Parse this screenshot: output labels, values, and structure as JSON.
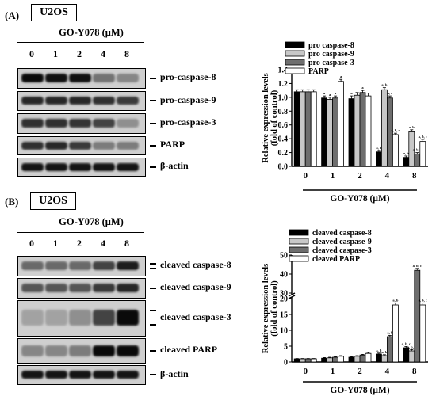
{
  "panelA": {
    "label": "(A)",
    "cell_line": "U2OS",
    "condition": "GO-Y078 (μM)",
    "lanes": [
      "0",
      "1",
      "2",
      "4",
      "8"
    ],
    "blots": [
      {
        "name": "pro-caspase-8",
        "intensity": [
          1.0,
          0.97,
          0.97,
          0.45,
          0.35
        ]
      },
      {
        "name": "pro-caspase-9",
        "intensity": [
          0.85,
          0.85,
          0.85,
          0.8,
          0.75
        ]
      },
      {
        "name": "pro-caspase-3",
        "intensity": [
          0.8,
          0.8,
          0.78,
          0.7,
          0.3
        ]
      },
      {
        "name": "PARP",
        "intensity": [
          0.8,
          0.85,
          0.75,
          0.4,
          0.4
        ]
      },
      {
        "name": "β-actin",
        "intensity": [
          0.95,
          0.95,
          0.95,
          0.95,
          0.95
        ]
      }
    ]
  },
  "panelB": {
    "label": "(B)",
    "cell_line": "U2OS",
    "condition": "GO-Y078 (μM)",
    "lanes": [
      "0",
      "1",
      "2",
      "4",
      "8"
    ],
    "blots": [
      {
        "name": "cleaved caspase-8",
        "intensity": [
          0.5,
          0.5,
          0.5,
          0.7,
          0.9
        ]
      },
      {
        "name": "cleaved caspase-9",
        "intensity": [
          0.6,
          0.6,
          0.6,
          0.75,
          0.85
        ]
      },
      {
        "name": "cleaved caspase-3",
        "intensity": [
          0.2,
          0.2,
          0.3,
          0.7,
          1.0
        ]
      },
      {
        "name": "cleaved PARP",
        "intensity": [
          0.35,
          0.35,
          0.4,
          1.0,
          1.0
        ]
      },
      {
        "name": "β-actin",
        "intensity": [
          0.95,
          0.95,
          0.95,
          0.95,
          0.95
        ]
      }
    ]
  },
  "chart_data": [
    {
      "type": "bar",
      "title": "",
      "xlabel": "GO-Y078 (μM)",
      "ylabel": "Relative expression levels (fold of control)",
      "ylabel_lines": [
        "Relative expression levels",
        "(fold of control)"
      ],
      "categories": [
        "0",
        "1",
        "2",
        "4",
        "8"
      ],
      "ylim": [
        0,
        1.4
      ],
      "yticks": [
        "0.0",
        "0.2",
        "0.4",
        "0.6",
        "0.8",
        "1.0",
        "1.2",
        "1.4"
      ],
      "legend_position": "top",
      "series": [
        {
          "name": "pro caspase-8",
          "color": "#000000",
          "values": [
            1.08,
            0.99,
            0.98,
            0.21,
            0.13
          ],
          "errors": [
            0.03,
            0.03,
            0.04,
            0.02,
            0.02
          ],
          "labels": [
            "",
            "a",
            "a",
            "a, b",
            "a, b"
          ]
        },
        {
          "name": "pro caspase-9",
          "color": "#c8c8c8",
          "values": [
            1.08,
            0.97,
            1.03,
            1.11,
            0.5
          ],
          "errors": [
            0.03,
            0.03,
            0.04,
            0.03,
            0.03
          ],
          "labels": [
            "",
            "a",
            "",
            "a, b",
            "a, b"
          ]
        },
        {
          "name": "pro caspase-3",
          "color": "#6e6e6e",
          "values": [
            1.08,
            0.99,
            1.07,
            0.99,
            0.18
          ],
          "errors": [
            0.03,
            0.03,
            0.03,
            0.03,
            0.02
          ],
          "labels": [
            "",
            "a",
            "a",
            "a, c",
            "a, b, c"
          ]
        },
        {
          "name": "PARP",
          "color": "#ffffff",
          "values": [
            1.08,
            1.23,
            1.02,
            0.46,
            0.36
          ],
          "errors": [
            0.03,
            0.03,
            0.04,
            0.02,
            0.03
          ],
          "labels": [
            "",
            "a",
            "",
            "a, b, c",
            "a, b, c"
          ]
        }
      ]
    },
    {
      "type": "bar",
      "title": "",
      "xlabel": "GO-Y078 (μM)",
      "ylabel": "Relative expression levels (fold of control)",
      "ylabel_lines": [
        "Relative expression levels",
        "(fold of control)"
      ],
      "categories": [
        "0",
        "1",
        "2",
        "4",
        "8"
      ],
      "ylim": [
        0,
        50
      ],
      "axis_break": [
        20,
        30
      ],
      "yticks_lower": [
        "0",
        "5",
        "10",
        "15",
        "20"
      ],
      "yticks_upper": [
        "30",
        "40",
        "50"
      ],
      "legend_position": "top",
      "series": [
        {
          "name": "cleaved caspase-8",
          "color": "#000000",
          "values": [
            1.0,
            1.2,
            1.5,
            2.5,
            4.5
          ],
          "errors": [
            0.1,
            0.2,
            0.2,
            0.3,
            0.4
          ],
          "labels": [
            "",
            "",
            "",
            "a, b",
            "a, b, c"
          ]
        },
        {
          "name": "cleaved caspase-9",
          "color": "#c8c8c8",
          "values": [
            1.0,
            1.3,
            1.8,
            2.0,
            3.5
          ],
          "errors": [
            0.1,
            0.2,
            0.2,
            0.3,
            0.4
          ],
          "labels": [
            "",
            "",
            "",
            "a, b",
            "a, b, c"
          ]
        },
        {
          "name": "cleaved caspase-3",
          "color": "#6e6e6e",
          "values": [
            1.0,
            1.5,
            2.2,
            8.0,
            42.0
          ],
          "errors": [
            0.1,
            0.2,
            0.2,
            0.4,
            1.0
          ],
          "labels": [
            "",
            "",
            "",
            "a, b",
            "a, b, c"
          ]
        },
        {
          "name": "cleaved PARP",
          "color": "#ffffff",
          "values": [
            1.0,
            1.8,
            2.7,
            18.0,
            18.0
          ],
          "errors": [
            0.1,
            0.2,
            0.3,
            0.6,
            0.6
          ],
          "labels": [
            "",
            "",
            "",
            "a, b",
            "a, b, c"
          ]
        }
      ]
    }
  ]
}
